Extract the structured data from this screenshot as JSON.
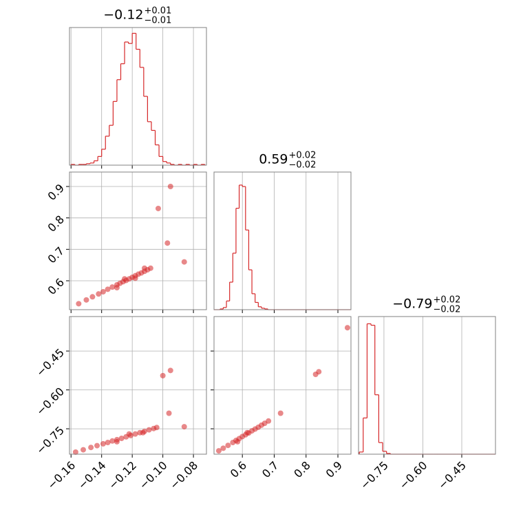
{
  "chart_data": [
    {
      "type": "histogram",
      "color": "#d62728",
      "title": "−0.12",
      "title_upper": "+0.01",
      "title_lower": "−0.01",
      "bins": [
        -0.16,
        -0.1575,
        -0.155,
        -0.1525,
        -0.15,
        -0.1475,
        -0.145,
        -0.1425,
        -0.14,
        -0.1375,
        -0.135,
        -0.1325,
        -0.13,
        -0.1275,
        -0.125,
        -0.1225,
        -0.12,
        -0.1175,
        -0.115,
        -0.1125,
        -0.11,
        -0.1075,
        -0.105,
        -0.1025,
        -0.1,
        -0.0975,
        -0.095,
        -0.0925,
        -0.09,
        -0.0875,
        -0.085,
        -0.0825,
        -0.08,
        -0.0775,
        -0.075,
        -0.0725
      ],
      "counts": [
        1,
        0,
        1,
        1,
        2,
        3,
        6,
        12,
        22,
        40,
        55,
        88,
        118,
        140,
        170,
        168,
        182,
        160,
        135,
        95,
        60,
        48,
        28,
        12,
        5,
        3,
        1,
        0,
        1,
        0,
        1,
        0,
        1,
        0,
        1
      ],
      "xlim": [
        -0.161,
        -0.0715
      ],
      "ylim": [
        0,
        190
      ],
      "xticks": [
        -0.16,
        -0.14,
        -0.12,
        -0.1,
        -0.08
      ],
      "grid": true
    },
    {
      "type": "scatter",
      "color": "#d62728",
      "x": [
        -0.155,
        -0.15,
        -0.146,
        -0.142,
        -0.139,
        -0.136,
        -0.133,
        -0.13,
        -0.128,
        -0.126,
        -0.124,
        -0.122,
        -0.12,
        -0.118,
        -0.116,
        -0.114,
        -0.112,
        -0.11,
        -0.108,
        -0.13,
        -0.125,
        -0.118,
        -0.112,
        -0.086,
        -0.097,
        -0.103,
        -0.095
      ],
      "y": [
        0.527,
        0.539,
        0.549,
        0.558,
        0.565,
        0.573,
        0.58,
        0.587,
        0.592,
        0.597,
        0.601,
        0.606,
        0.611,
        0.616,
        0.621,
        0.625,
        0.63,
        0.635,
        0.64,
        0.578,
        0.606,
        0.608,
        0.64,
        0.66,
        0.72,
        0.83,
        0.9
      ],
      "xlim": [
        -0.161,
        -0.0715
      ],
      "ylim": [
        0.508,
        0.946
      ],
      "xticks": [
        -0.16,
        -0.14,
        -0.12,
        -0.1,
        -0.08
      ],
      "yticks": [
        0.6,
        0.7,
        0.8,
        0.9
      ],
      "grid": true
    },
    {
      "type": "histogram",
      "color": "#d62728",
      "title": "0.59",
      "title_upper": "+0.02",
      "title_lower": "−0.02",
      "bins": [
        0.51,
        0.52,
        0.53,
        0.54,
        0.55,
        0.56,
        0.57,
        0.58,
        0.59,
        0.6,
        0.61,
        0.62,
        0.63,
        0.64,
        0.65,
        0.66,
        0.67,
        0.68,
        0.69,
        0.7,
        0.71,
        0.72,
        0.73,
        0.74,
        0.75,
        0.76,
        0.77,
        0.78,
        0.79,
        0.8,
        0.81,
        0.82,
        0.83,
        0.84,
        0.85,
        0.86,
        0.87,
        0.88,
        0.89,
        0.9,
        0.91,
        0.92,
        0.93,
        0.94
      ],
      "counts": [
        0,
        0,
        1,
        3,
        12,
        38,
        78,
        140,
        172,
        170,
        110,
        55,
        22,
        10,
        4,
        2,
        1,
        0,
        0,
        0,
        0,
        0,
        0,
        0,
        0,
        0,
        0,
        0,
        0,
        0,
        0,
        0,
        0,
        0,
        0,
        0,
        0,
        0,
        0,
        0,
        0,
        0,
        0
      ],
      "xlim": [
        0.511,
        0.941
      ],
      "ylim": [
        0,
        190
      ],
      "xticks": [
        0.6,
        0.7,
        0.8,
        0.9
      ],
      "grid": true
    },
    {
      "type": "scatter",
      "color": "#d62728",
      "x": [
        -0.157,
        -0.152,
        -0.147,
        -0.143,
        -0.139,
        -0.136,
        -0.133,
        -0.13,
        -0.127,
        -0.124,
        -0.121,
        -0.118,
        -0.115,
        -0.112,
        -0.109,
        -0.106,
        -0.104,
        -0.13,
        -0.122,
        -0.113,
        -0.086,
        -0.1,
        -0.095,
        -0.096
      ],
      "y": [
        -0.84,
        -0.831,
        -0.822,
        -0.815,
        -0.808,
        -0.803,
        -0.797,
        -0.792,
        -0.787,
        -0.781,
        -0.776,
        -0.77,
        -0.765,
        -0.76,
        -0.754,
        -0.749,
        -0.745,
        -0.8,
        -0.77,
        -0.765,
        -0.742,
        -0.545,
        -0.525,
        -0.69
      ],
      "xlim": [
        -0.161,
        -0.0715
      ],
      "ylim": [
        -0.848,
        -0.317
      ],
      "xticks": [
        {
          "value": -0.16,
          "label": "−0.16"
        },
        {
          "value": -0.14,
          "label": "−0.14"
        },
        {
          "value": -0.12,
          "label": "−0.12"
        },
        {
          "value": -0.1,
          "label": "−0.10"
        },
        {
          "value": -0.08,
          "label": "−0.08"
        }
      ],
      "yticks": [
        {
          "value": -0.45,
          "label": "−0.45"
        },
        {
          "value": -0.6,
          "label": "−0.60"
        },
        {
          "value": -0.75,
          "label": "−0.75"
        }
      ],
      "grid": true
    },
    {
      "type": "scatter",
      "color": "#d62728",
      "x": [
        0.526,
        0.54,
        0.555,
        0.57,
        0.58,
        0.59,
        0.6,
        0.61,
        0.62,
        0.63,
        0.64,
        0.65,
        0.66,
        0.67,
        0.682,
        0.585,
        0.615,
        0.72,
        0.83,
        0.84,
        0.93
      ],
      "y": [
        -0.835,
        -0.825,
        -0.814,
        -0.803,
        -0.795,
        -0.788,
        -0.78,
        -0.773,
        -0.766,
        -0.758,
        -0.751,
        -0.744,
        -0.736,
        -0.729,
        -0.72,
        -0.8,
        -0.765,
        -0.69,
        -0.54,
        -0.53,
        -0.36
      ],
      "xlim": [
        0.511,
        0.941
      ],
      "ylim": [
        -0.848,
        -0.317
      ],
      "xticks": [
        0.6,
        0.7,
        0.8,
        0.9
      ],
      "yticks": [
        -0.45,
        -0.6,
        -0.75
      ],
      "grid": true
    },
    {
      "type": "histogram",
      "color": "#d62728",
      "title": "−0.79",
      "title_upper": "+0.02",
      "title_lower": "−0.02",
      "bins": [
        -0.845,
        -0.83,
        -0.815,
        -0.8,
        -0.785,
        -0.77,
        -0.755,
        -0.74,
        -0.725,
        -0.71,
        -0.695,
        -0.68,
        -0.665,
        -0.65,
        -0.635,
        -0.62,
        -0.605,
        -0.59,
        -0.575,
        -0.56,
        -0.545,
        -0.53,
        -0.515,
        -0.5,
        -0.485,
        -0.47,
        -0.455,
        -0.44,
        -0.425,
        -0.41,
        -0.395,
        -0.38,
        -0.365,
        -0.35,
        -0.335,
        -0.32
      ],
      "counts": [
        3,
        50,
        180,
        178,
        82,
        16,
        4,
        1,
        0,
        0,
        0,
        0,
        0,
        0,
        0,
        0,
        0,
        0,
        0,
        0,
        0,
        0,
        0,
        0,
        0,
        0,
        0,
        0,
        0,
        0,
        0,
        0,
        0,
        0,
        0
      ],
      "xlim": [
        -0.848,
        -0.32
      ],
      "ylim": [
        0,
        190
      ],
      "xticks": [
        {
          "value": -0.75,
          "label": "−0.75"
        },
        {
          "value": -0.6,
          "label": "−0.60"
        },
        {
          "value": -0.45,
          "label": "−0.45"
        }
      ],
      "grid": true
    }
  ]
}
